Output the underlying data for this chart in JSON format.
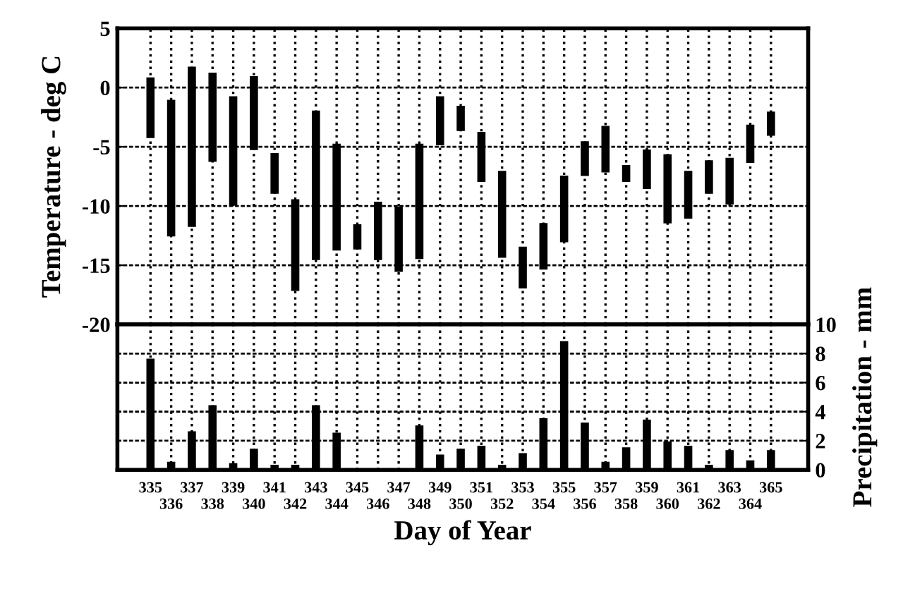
{
  "chart_data": [
    {
      "type": "bar",
      "ylabel": "Temperature - deg C",
      "categories": [
        "335",
        "336",
        "337",
        "338",
        "339",
        "340",
        "341",
        "342",
        "343",
        "344",
        "345",
        "346",
        "347",
        "348",
        "349",
        "350",
        "351",
        "352",
        "353",
        "354",
        "355",
        "356",
        "357",
        "358",
        "359",
        "360",
        "361",
        "362",
        "363",
        "364",
        "365"
      ],
      "base": [
        -4.2,
        -12.5,
        -11.7,
        -6.2,
        -9.9,
        -5.2,
        -8.9,
        -17.1,
        -14.5,
        -13.7,
        -13.6,
        -14.5,
        -15.5,
        -14.4,
        -4.8,
        -3.6,
        -7.9,
        -14.3,
        -16.9,
        -15.3,
        -13.0,
        -7.4,
        -7.1,
        -7.9,
        -8.5,
        -11.4,
        -11.0,
        -8.9,
        -9.8,
        -6.3,
        -4.0
      ],
      "values": [
        5.0,
        11.4,
        13.4,
        7.4,
        9.1,
        6.1,
        3.3,
        7.6,
        12.5,
        8.9,
        2.0,
        4.8,
        5.4,
        9.6,
        4.0,
        2.0,
        4.1,
        7.2,
        3.4,
        3.8,
        5.5,
        2.8,
        3.8,
        1.3,
        3.2,
        5.7,
        3.9,
        2.7,
        3.8,
        3.1,
        1.9
      ],
      "color": "#000000",
      "ylim": [
        -20,
        5
      ],
      "yticks": [
        -20,
        -15,
        -10,
        -5,
        0,
        5
      ],
      "grid": true,
      "tick_labels": "y"
    },
    {
      "type": "bar",
      "xlabel": "Day of Year",
      "y2label": "Precipitation - mm",
      "categories": [
        "335",
        "336",
        "337",
        "338",
        "339",
        "340",
        "341",
        "342",
        "343",
        "344",
        "345",
        "346",
        "347",
        "348",
        "349",
        "350",
        "351",
        "352",
        "353",
        "354",
        "355",
        "356",
        "357",
        "358",
        "359",
        "360",
        "361",
        "362",
        "363",
        "364",
        "365"
      ],
      "series": [
        {
          "color": "#000000",
          "axis": "y2",
          "values": [
            7.6,
            0.5,
            2.6,
            4.4,
            0.4,
            1.4,
            0.3,
            0.3,
            4.4,
            2.5,
            0,
            0,
            0,
            3.0,
            1.0,
            1.4,
            1.6,
            0.3,
            1.1,
            3.5,
            8.8,
            3.2,
            0.5,
            1.5,
            3.4,
            1.9,
            1.6,
            0.3,
            1.3,
            0.6,
            1.3
          ]
        }
      ],
      "y2lim": [
        0,
        10
      ],
      "y2ticks": [
        0,
        2,
        4,
        6,
        8,
        10
      ],
      "grid": true
    }
  ]
}
